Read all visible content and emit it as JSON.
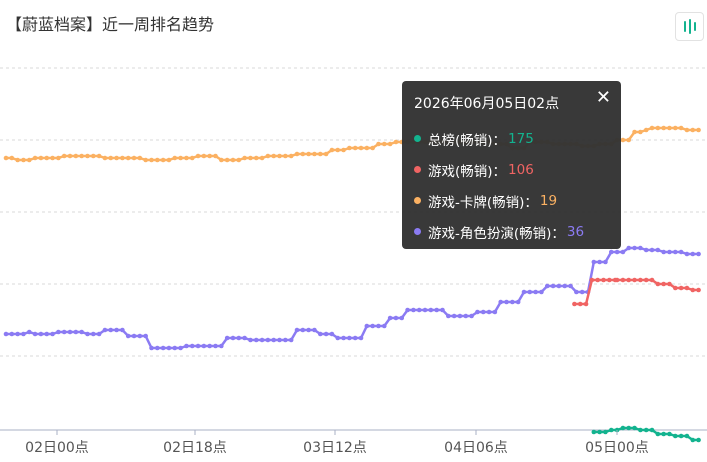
{
  "title": "【蔚蓝档案】近一周排名趋势",
  "toolbar": {
    "chart_icon": "bar-chart-icon",
    "accent": "#13b38f"
  },
  "tooltip": {
    "title": "2026年06月05日02点",
    "close_icon": "close-icon",
    "items": [
      {
        "label": "总榜(畅销)：",
        "value": "175",
        "color": "#13b38f"
      },
      {
        "label": "游戏(畅销)：",
        "value": "106",
        "color": "#f06463"
      },
      {
        "label": "游戏-卡牌(畅销)：",
        "value": "19",
        "color": "#fbb162"
      },
      {
        "label": "游戏-角色扮演(畅销)：",
        "value": "36",
        "color": "#8b7bf3"
      }
    ]
  },
  "chart_data": {
    "type": "line",
    "title": "【蔚蓝档案】近一周排名趋势",
    "x_ticks": [
      "02日00点",
      "02日18点",
      "03日12点",
      "04日06点",
      "05日00点"
    ],
    "grid": true,
    "legend": "none",
    "series": [
      {
        "name": "游戏-卡牌(畅销)",
        "color": "#fbb162",
        "x_start": -3,
        "x_step": 1,
        "values": [
          37,
          37,
          38,
          38,
          38,
          36,
          36,
          36,
          36,
          36,
          36,
          36,
          37,
          37,
          37,
          37,
          37,
          37,
          37,
          38,
          38,
          38,
          38,
          38,
          38,
          38,
          38,
          38,
          38,
          38,
          38,
          38,
          38,
          37,
          37,
          37,
          37,
          37,
          38,
          38,
          38,
          37,
          37,
          37,
          37,
          37,
          37,
          37,
          37,
          36,
          36,
          36,
          36,
          36,
          36,
          35,
          35,
          35,
          33,
          33,
          33,
          32,
          32,
          32,
          32,
          32,
          32,
          30,
          30,
          30,
          29,
          29,
          29,
          29,
          29,
          29,
          29,
          29,
          29,
          29,
          29,
          29,
          29,
          30,
          30,
          30,
          32,
          32,
          32,
          32,
          32,
          32,
          29,
          29,
          29,
          29,
          30,
          30,
          30,
          30,
          30,
          30,
          30,
          30,
          30,
          30,
          30,
          30,
          31,
          31,
          31,
          30,
          30,
          30,
          28,
          28,
          28,
          24,
          24,
          24,
          23,
          23,
          22,
          22,
          22,
          22,
          22,
          22,
          22,
          22,
          22,
          22,
          22,
          22,
          22,
          22,
          23,
          23,
          23,
          23,
          23,
          23
        ],
        "sparse": [
          [
            -3,
            37
          ],
          [
            0,
            37
          ],
          [
            3,
            38
          ],
          [
            9,
            38
          ],
          [
            12,
            37
          ],
          [
            24,
            37
          ],
          [
            27,
            36
          ],
          [
            45,
            36
          ],
          [
            48,
            37
          ],
          [
            66,
            37
          ],
          [
            69,
            38
          ],
          [
            81,
            38
          ],
          [
            84,
            37
          ],
          [
            93,
            37
          ],
          [
            96,
            36
          ],
          [
            105,
            36
          ],
          [
            108,
            38
          ],
          [
            117,
            38
          ],
          [
            120,
            37
          ],
          [
            129,
            37
          ],
          [
            132,
            36
          ],
          [
            144,
            36
          ],
          [
            147,
            35
          ],
          [
            162,
            35
          ],
          [
            165,
            33
          ],
          [
            171,
            33
          ],
          [
            174,
            32
          ],
          [
            186,
            32
          ],
          [
            189,
            30
          ],
          [
            195,
            30
          ],
          [
            198,
            29
          ],
          [
            246,
            29
          ],
          [
            249,
            30
          ],
          [
            255,
            30
          ],
          [
            258,
            32
          ],
          [
            264,
            32
          ],
          [
            267,
            29
          ],
          [
            276,
            29
          ],
          [
            279,
            30
          ],
          [
            291,
            30
          ],
          [
            294,
            31
          ],
          [
            300,
            31
          ],
          [
            303,
            30
          ],
          [
            309,
            30
          ],
          [
            312,
            28
          ],
          [
            318,
            28
          ],
          [
            321,
            24
          ],
          [
            324,
            24
          ],
          [
            327,
            23
          ],
          [
            330,
            22
          ],
          [
            345,
            22
          ],
          [
            348,
            23
          ],
          [
            354,
            23
          ]
        ]
      },
      {
        "name": "游戏-角色扮演(畅销)",
        "color": "#8b7bf3",
        "sparse": [
          [
            -3,
            125
          ],
          [
            9,
            124
          ],
          [
            12,
            125
          ],
          [
            24,
            124
          ],
          [
            36,
            124
          ],
          [
            39,
            125
          ],
          [
            45,
            125
          ],
          [
            48,
            123
          ],
          [
            57,
            123
          ],
          [
            60,
            126
          ],
          [
            69,
            126
          ],
          [
            72,
            132
          ],
          [
            87,
            132
          ],
          [
            90,
            131
          ],
          [
            108,
            131
          ],
          [
            111,
            127
          ],
          [
            120,
            127
          ],
          [
            123,
            128
          ],
          [
            144,
            128
          ],
          [
            147,
            123
          ],
          [
            156,
            123
          ],
          [
            159,
            125
          ],
          [
            165,
            125
          ],
          [
            168,
            127
          ],
          [
            180,
            127
          ],
          [
            183,
            121
          ],
          [
            192,
            121
          ],
          [
            195,
            117
          ],
          [
            201,
            117
          ],
          [
            204,
            113
          ],
          [
            222,
            113
          ],
          [
            225,
            116
          ],
          [
            237,
            116
          ],
          [
            240,
            114
          ],
          [
            249,
            114
          ],
          [
            252,
            109
          ],
          [
            261,
            109
          ],
          [
            264,
            104
          ],
          [
            273,
            104
          ],
          [
            276,
            101
          ],
          [
            288,
            101
          ],
          [
            291,
            104
          ],
          [
            297,
            104
          ],
          [
            300,
            89
          ],
          [
            306,
            89
          ],
          [
            309,
            84
          ],
          [
            315,
            84
          ],
          [
            318,
            82
          ],
          [
            324,
            82
          ],
          [
            327,
            83
          ],
          [
            333,
            83
          ],
          [
            336,
            84
          ],
          [
            345,
            84
          ],
          [
            348,
            85
          ],
          [
            354,
            85
          ]
        ]
      },
      {
        "name": "游戏(畅销)",
        "color": "#f06463",
        "sparse": [
          [
            290,
            110
          ],
          [
            296,
            110
          ],
          [
            299,
            98
          ],
          [
            312,
            98
          ],
          [
            315,
            98
          ],
          [
            330,
            98
          ],
          [
            333,
            100
          ],
          [
            339,
            100
          ],
          [
            342,
            102
          ],
          [
            348,
            102
          ],
          [
            351,
            103
          ],
          [
            354,
            103
          ]
        ]
      },
      {
        "name": "总榜(畅销)",
        "color": "#13b38f",
        "sparse": [
          [
            300,
            174
          ],
          [
            306,
            174
          ],
          [
            309,
            173
          ],
          [
            312,
            173
          ],
          [
            315,
            172
          ],
          [
            321,
            172
          ],
          [
            324,
            173
          ],
          [
            330,
            173
          ],
          [
            333,
            175
          ],
          [
            339,
            175
          ],
          [
            342,
            176
          ],
          [
            348,
            176
          ],
          [
            351,
            178
          ],
          [
            354,
            178
          ]
        ]
      }
    ],
    "tooltip_index_label": "2026年06月05日02点"
  }
}
